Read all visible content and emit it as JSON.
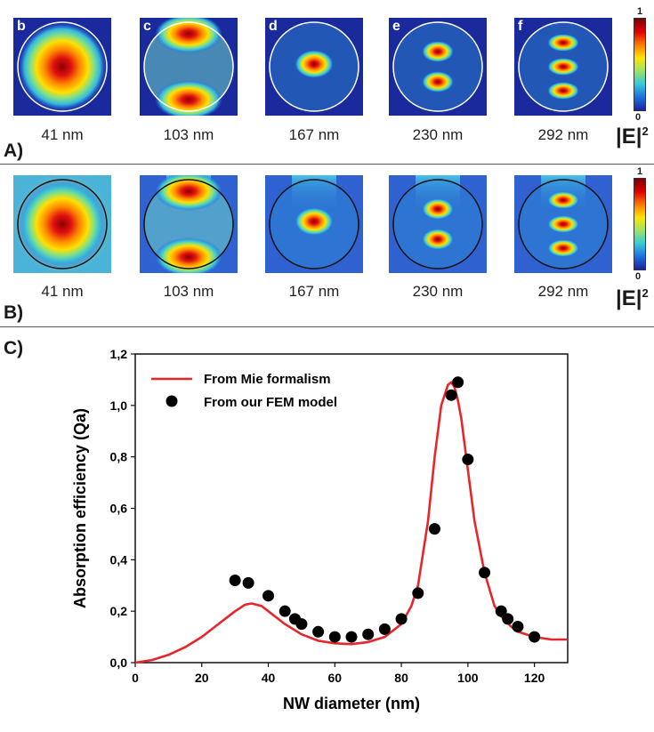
{
  "panelA": {
    "label": "A)",
    "letters": [
      "b",
      "c",
      "d",
      "e",
      "f"
    ],
    "captions": [
      "41 nm",
      "103 nm",
      "167 nm",
      "230 nm",
      "292 nm"
    ],
    "colorbar": {
      "max": "1",
      "min": "0",
      "label": "|E|",
      "exp": "2"
    }
  },
  "panelB": {
    "label": "B)",
    "captions": [
      "41 nm",
      "103 nm",
      "167 nm",
      "230 nm",
      "292 nm"
    ],
    "colorbar": {
      "max": "1",
      "min": "0",
      "label": "|E|",
      "exp": "2"
    }
  },
  "panelC": {
    "label": "C)"
  },
  "colors": {
    "mie": "#e8262a",
    "fem": "#000000",
    "field_low": "#1a23a0",
    "field_high": "#8b0000"
  },
  "chart_data": {
    "type": "line",
    "xlabel": "NW diameter (nm)",
    "ylabel": "Absorption efficiency (Qa)",
    "xlim": [
      0,
      130
    ],
    "ylim": [
      0,
      1.2
    ],
    "xticks": [
      "0",
      "20",
      "40",
      "60",
      "80",
      "100",
      "120"
    ],
    "yticks": [
      "0,0",
      "0,2",
      "0,4",
      "0,6",
      "0,8",
      "1,0",
      "1,2"
    ],
    "legend_position": "top-left",
    "grid": false,
    "series": [
      {
        "name": "From Mie formalism",
        "kind": "line",
        "x": [
          0,
          5,
          10,
          15,
          20,
          25,
          30,
          33,
          35,
          38,
          40,
          45,
          50,
          55,
          60,
          65,
          70,
          75,
          80,
          83,
          85,
          88,
          90,
          92,
          94,
          95,
          96,
          97,
          98,
          100,
          102,
          105,
          108,
          110,
          113,
          115,
          120,
          125,
          130
        ],
        "y": [
          0.0,
          0.01,
          0.03,
          0.06,
          0.1,
          0.15,
          0.2,
          0.225,
          0.23,
          0.22,
          0.2,
          0.15,
          0.11,
          0.085,
          0.075,
          0.072,
          0.08,
          0.1,
          0.15,
          0.22,
          0.3,
          0.55,
          0.8,
          1.0,
          1.08,
          1.09,
          1.07,
          1.02,
          0.95,
          0.75,
          0.55,
          0.35,
          0.22,
          0.18,
          0.14,
          0.12,
          0.1,
          0.09,
          0.09
        ]
      },
      {
        "name": "From our FEM model",
        "kind": "scatter",
        "x": [
          30,
          34,
          40,
          45,
          48,
          50,
          55,
          60,
          65,
          70,
          75,
          80,
          85,
          90,
          95,
          97,
          100,
          105,
          110,
          112,
          115,
          120
        ],
        "y": [
          0.32,
          0.31,
          0.26,
          0.2,
          0.17,
          0.15,
          0.12,
          0.1,
          0.1,
          0.11,
          0.13,
          0.17,
          0.27,
          0.52,
          1.04,
          1.09,
          0.79,
          0.35,
          0.2,
          0.17,
          0.14,
          0.1
        ]
      }
    ]
  }
}
